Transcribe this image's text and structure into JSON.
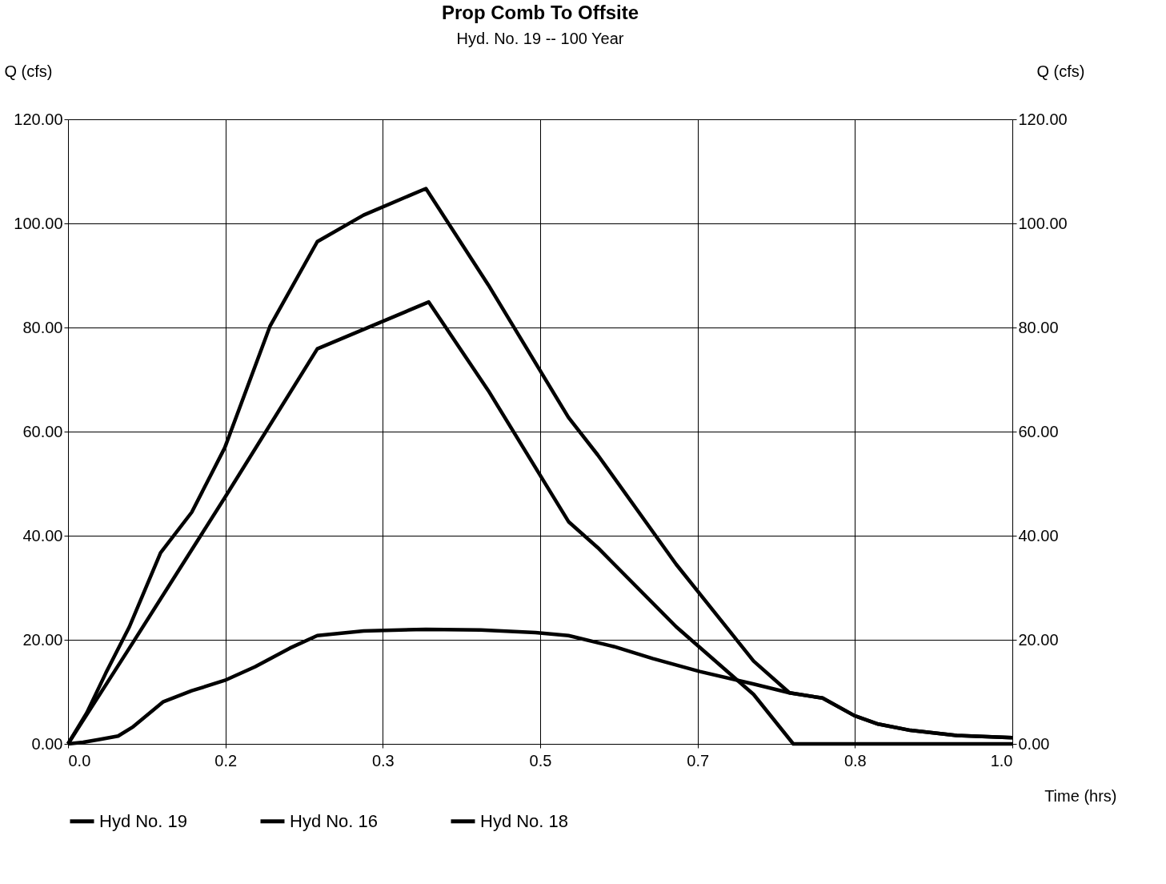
{
  "chart_data": {
    "type": "line",
    "title": "Prop Comb To Offsite",
    "subtitle": "Hyd. No. 19 -- 100 Year",
    "xlabel": "Time (hrs)",
    "ylabel": "Q (cfs)",
    "y2label": "Q (cfs)",
    "xlim": [
      0,
      1
    ],
    "xticks": [
      {
        "value": 0,
        "label": "0.0"
      },
      {
        "value": 0.1667,
        "label": "0.2"
      },
      {
        "value": 0.3333,
        "label": "0.3"
      },
      {
        "value": 0.5,
        "label": "0.5"
      },
      {
        "value": 0.6667,
        "label": "0.7"
      },
      {
        "value": 0.8333,
        "label": "0.8"
      },
      {
        "value": 1,
        "label": "1.0"
      }
    ],
    "ylim": [
      0,
      120
    ],
    "yticks": [
      {
        "value": 0,
        "label": "0.00"
      },
      {
        "value": 20,
        "label": "20.00"
      },
      {
        "value": 40,
        "label": "40.00"
      },
      {
        "value": 60,
        "label": "60.00"
      },
      {
        "value": 80,
        "label": "80.00"
      },
      {
        "value": 100,
        "label": "100.00"
      },
      {
        "value": 120,
        "label": "120.00"
      }
    ],
    "y2lim": [
      0,
      120
    ],
    "y2ticks": [
      {
        "value": 0,
        "label": "0.00"
      },
      {
        "value": 20,
        "label": "20.00"
      },
      {
        "value": 40,
        "label": "40.00"
      },
      {
        "value": 60,
        "label": "60.00"
      },
      {
        "value": 80,
        "label": "80.00"
      },
      {
        "value": 100,
        "label": "100.00"
      },
      {
        "value": 120,
        "label": "120.00"
      }
    ],
    "grid": true,
    "legend": "bottom left",
    "line_style": "solid",
    "marker": "none",
    "series": [
      {
        "name": "Hyd No. 19",
        "color": "#000000",
        "x": [
          0,
          0.02,
          0.04,
          0.065,
          0.098,
          0.131,
          0.166,
          0.214,
          0.264,
          0.313,
          0.379,
          0.445,
          0.53,
          0.561,
          0.644,
          0.726,
          0.764,
          0.799,
          0.833,
          0.858,
          0.892,
          0.941,
          1.0
        ],
        "values": [
          0,
          6,
          13.6,
          22.5,
          36.7,
          44.5,
          56.9,
          80.3,
          96.5,
          101.6,
          106.7,
          88.2,
          62.7,
          55.5,
          34.5,
          15.9,
          9.8,
          8.8,
          5.4,
          3.8,
          2.6,
          1.6,
          1.2
        ]
      },
      {
        "name": "Hyd No. 16",
        "color": "#000000",
        "x": [
          0,
          0.065,
          0.166,
          0.264,
          0.382,
          0.445,
          0.53,
          0.561,
          0.644,
          0.726,
          0.768,
          1.0
        ],
        "values": [
          0,
          18.4,
          47.3,
          75.9,
          84.9,
          67.9,
          42.7,
          37.7,
          22.5,
          9.5,
          0,
          0
        ]
      },
      {
        "name": "Hyd No. 18",
        "color": "#000000",
        "x": [
          0,
          0.016,
          0.032,
          0.053,
          0.069,
          0.101,
          0.131,
          0.166,
          0.198,
          0.235,
          0.264,
          0.313,
          0.379,
          0.437,
          0.495,
          0.53,
          0.578,
          0.619,
          0.669,
          0.726,
          0.764,
          0.799,
          0.833,
          0.858,
          0.892,
          0.941,
          1.0
        ],
        "values": [
          0,
          0.3,
          0.8,
          1.5,
          3.3,
          8.1,
          10.2,
          12.2,
          14.8,
          18.4,
          20.8,
          21.7,
          22,
          21.9,
          21.4,
          20.8,
          18.7,
          16.4,
          13.9,
          11.5,
          9.8,
          8.8,
          5.4,
          3.8,
          2.6,
          1.6,
          1.2
        ]
      }
    ]
  }
}
